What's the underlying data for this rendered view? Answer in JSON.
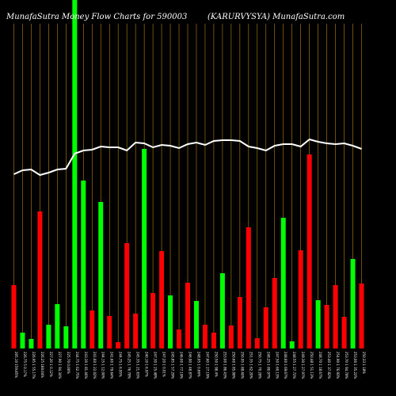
{
  "header": {
    "left": "MunafaSutra  Money Flow  Charts for 590003",
    "right": "(KARURVYSYA) MunafaSutra.com"
  },
  "colors": {
    "background": "#000000",
    "gridline": "#b8860b",
    "up": "#00ff00",
    "down": "#ff0000",
    "line": "#ffffff",
    "text": "#ffffff"
  },
  "chart_data": {
    "type": "bar",
    "title": "MunafaSutra  Money Flow  Charts for 590003",
    "ylim": [
      0,
      440
    ],
    "line_ylim": [
      0,
      440
    ],
    "grid": true,
    "legend": "none",
    "categories": [
      "205.10 159.85%",
      "226.75 5 0.17%",
      "226.95 1 55.17%",
      "226.25 168.04%",
      "227.20 1 0.12%",
      "227.90 1 94.34%",
      "225.70 0.00%",
      "244.75 1 62.75%",
      "243.30 1 81.46%",
      "241.60 1 22.02%",
      "244.15 1 12.00%",
      "241.60 1 79.64%",
      "244.75 1 6.95%",
      "245.25 1 76.78%",
      "245.35 1 21.63%",
      "240.10 1 6.97%",
      "247.30 1 25.48%",
      "247.20 1 0.01%",
      "245.85 1 57.29%",
      "246.00 1 77.19%",
      "246.90 1 48.87%",
      "248.05 1 0.66%",
      "247.60 1 27.19%",
      "250.50 1 98.4%",
      "253.00 1 86.43%",
      "250.60 1 85.08%",
      "250.95 1 88.40%",
      "251.35 1 62.20%",
      "250.75 1 70.28%",
      "248.25 1 80.97%",
      "247.50 1 60.13%",
      "248.60 1 69.67%",
      "248.55 1 27.72%",
      "249.30 1 27.97%",
      "250.48 1 51.13%",
      "248.70 1 18.67%",
      "253.40 1 37.82%",
      "254.90 1 76.93%",
      "253.70 1 94.78%",
      "253.00 1 35.22%",
      "250.33 1 18%"
    ],
    "bar_colors": [
      "red",
      "green",
      "green",
      "red",
      "green",
      "green",
      "green",
      "green",
      "green",
      "red",
      "green",
      "red",
      "red",
      "red",
      "red",
      "green",
      "red",
      "red",
      "green",
      "red",
      "red",
      "green",
      "red",
      "red",
      "green",
      "red",
      "red",
      "red",
      "red",
      "red",
      "red",
      "green",
      "green",
      "red",
      "red",
      "green",
      "red",
      "red",
      "red",
      "green",
      "red"
    ],
    "values": [
      80,
      20,
      12,
      173,
      30,
      56,
      28,
      440,
      212,
      48,
      185,
      41,
      8,
      133,
      44,
      252,
      70,
      123,
      67,
      24,
      83,
      60,
      30,
      20,
      95,
      29,
      65,
      153,
      13,
      52,
      89,
      165,
      9,
      124,
      245,
      61,
      55,
      80,
      40,
      113,
      82
    ],
    "line": [
      220,
      225,
      226,
      219,
      222,
      226,
      227,
      246,
      250,
      251,
      255,
      254,
      254,
      250,
      260,
      259,
      254,
      257,
      256,
      253,
      258,
      260,
      257,
      262,
      263,
      263,
      262,
      255,
      253,
      250,
      256,
      258,
      258,
      255,
      264,
      261,
      259,
      258,
      259,
      256,
      252
    ]
  }
}
